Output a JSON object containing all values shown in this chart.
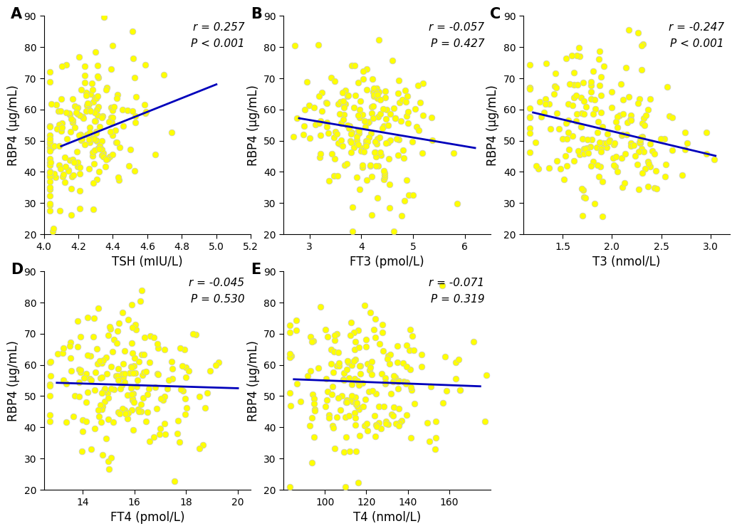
{
  "panels": [
    {
      "label": "A",
      "xlabel": "TSH (mIU/L)",
      "ylabel": "RBP4 (μg/mL)",
      "r_text": "r = 0.257",
      "p_text": "P < 0.001",
      "xlim": [
        4.0,
        5.2
      ],
      "ylim": [
        20,
        90
      ],
      "xticks": [
        4.0,
        4.2,
        4.4,
        4.6,
        4.8,
        5.0,
        5.2
      ],
      "yticks": [
        20,
        30,
        40,
        50,
        60,
        70,
        80,
        90
      ],
      "x_center": 4.25,
      "x_spread": 0.18,
      "slope": 22.0,
      "intercept": -42.0,
      "line_x": [
        4.1,
        5.0
      ]
    },
    {
      "label": "B",
      "xlabel": "FT3 (pmol/L)",
      "ylabel": "RBP4 (μg/mL)",
      "r_text": "r = -0.057",
      "p_text": "P = 0.427",
      "xlim": [
        2.5,
        6.5
      ],
      "ylim": [
        20,
        90
      ],
      "xticks": [
        3,
        4,
        5,
        6
      ],
      "yticks": [
        20,
        30,
        40,
        50,
        60,
        70,
        80,
        90
      ],
      "x_center": 4.1,
      "x_spread": 0.6,
      "slope": -2.8,
      "intercept": 65.0,
      "line_x": [
        2.8,
        6.2
      ]
    },
    {
      "label": "C",
      "xlabel": "T3 (nmol/L)",
      "ylabel": "RBP4 (μg/mL)",
      "r_text": "r = -0.247",
      "p_text": "P < 0.001",
      "xlim": [
        1.1,
        3.2
      ],
      "ylim": [
        20,
        90
      ],
      "xticks": [
        1.5,
        2.0,
        2.5,
        3.0
      ],
      "yticks": [
        20,
        30,
        40,
        50,
        60,
        70,
        80,
        90
      ],
      "x_center": 1.9,
      "x_spread": 0.42,
      "slope": -7.5,
      "intercept": 68.0,
      "line_x": [
        1.2,
        3.05
      ]
    },
    {
      "label": "D",
      "xlabel": "FT4 (pmol/L)",
      "ylabel": "RBP4 (μg/mL)",
      "r_text": "r = -0.045",
      "p_text": "P = 0.530",
      "xlim": [
        12.5,
        20.5
      ],
      "ylim": [
        20,
        90
      ],
      "xticks": [
        14,
        16,
        18,
        20
      ],
      "yticks": [
        20,
        30,
        40,
        50,
        60,
        70,
        80,
        90
      ],
      "x_center": 15.5,
      "x_spread": 1.5,
      "slope": -0.25,
      "intercept": 57.5,
      "line_x": [
        13.0,
        20.0
      ]
    },
    {
      "label": "E",
      "xlabel": "T4 (nmol/L)",
      "ylabel": "RBP4 (μg/mL)",
      "r_text": "r = -0.071",
      "p_text": "P = 0.319",
      "xlim": [
        80,
        180
      ],
      "ylim": [
        20,
        90
      ],
      "xticks": [
        100,
        120,
        140,
        160
      ],
      "yticks": [
        20,
        30,
        40,
        50,
        60,
        70,
        80,
        90
      ],
      "x_center": 120,
      "x_spread": 20,
      "slope": -0.025,
      "intercept": 57.5,
      "line_x": [
        85,
        175
      ]
    }
  ],
  "dot_color": "#FFFF00",
  "dot_edgecolor": "#C8C8C8",
  "dot_size": 40,
  "line_color": "#0000BB",
  "line_width": 2.0,
  "bg_color": "#FFFFFF",
  "label_fontsize": 15,
  "tick_fontsize": 10,
  "axis_label_fontsize": 12,
  "annot_fontsize": 11,
  "n_points": 200
}
